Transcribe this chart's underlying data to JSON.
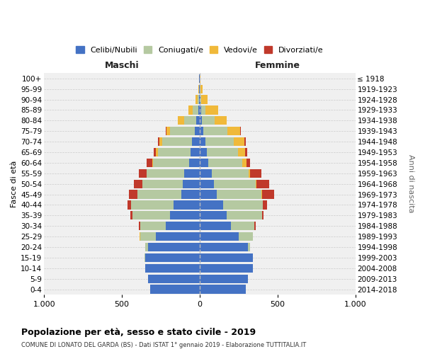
{
  "age_groups": [
    "100+",
    "95-99",
    "90-94",
    "85-89",
    "80-84",
    "75-79",
    "70-74",
    "65-69",
    "60-64",
    "55-59",
    "50-54",
    "45-49",
    "40-44",
    "35-39",
    "30-34",
    "25-29",
    "20-24",
    "15-19",
    "10-14",
    "5-9",
    "0-4"
  ],
  "birth_years": [
    "≤ 1918",
    "1919-1923",
    "1924-1928",
    "1929-1933",
    "1934-1938",
    "1939-1943",
    "1944-1948",
    "1949-1953",
    "1954-1958",
    "1959-1963",
    "1964-1968",
    "1969-1973",
    "1974-1978",
    "1979-1983",
    "1984-1988",
    "1989-1993",
    "1994-1998",
    "1999-2003",
    "2004-2008",
    "2009-2013",
    "2014-2018"
  ],
  "colors": {
    "celibi": "#4472c4",
    "coniugati": "#b5c9a1",
    "vedovi": "#f0b93a",
    "divorziati": "#c0392b"
  },
  "males": {
    "celibi": [
      2,
      3,
      5,
      8,
      20,
      30,
      50,
      60,
      70,
      100,
      110,
      120,
      170,
      190,
      220,
      280,
      330,
      350,
      350,
      330,
      320
    ],
    "coniugati": [
      0,
      2,
      8,
      35,
      80,
      160,
      190,
      210,
      230,
      240,
      260,
      280,
      270,
      240,
      160,
      100,
      20,
      5,
      0,
      0,
      0
    ],
    "vedovi": [
      0,
      3,
      15,
      30,
      40,
      25,
      20,
      10,
      5,
      3,
      0,
      0,
      0,
      0,
      0,
      5,
      0,
      0,
      0,
      0,
      0
    ],
    "divorziati": [
      0,
      0,
      0,
      0,
      0,
      5,
      10,
      15,
      35,
      50,
      55,
      55,
      25,
      15,
      10,
      3,
      0,
      0,
      0,
      0,
      0
    ]
  },
  "females": {
    "celibi": [
      2,
      2,
      5,
      8,
      15,
      25,
      35,
      45,
      55,
      80,
      90,
      110,
      150,
      175,
      200,
      250,
      310,
      340,
      340,
      310,
      295
    ],
    "coniugati": [
      0,
      2,
      5,
      30,
      80,
      155,
      185,
      200,
      220,
      235,
      270,
      285,
      255,
      225,
      150,
      90,
      15,
      3,
      0,
      0,
      0
    ],
    "vedovi": [
      5,
      15,
      40,
      80,
      80,
      80,
      65,
      45,
      25,
      10,
      5,
      5,
      0,
      0,
      0,
      0,
      0,
      0,
      0,
      0,
      0
    ],
    "divorziati": [
      0,
      0,
      0,
      0,
      0,
      5,
      10,
      15,
      25,
      70,
      80,
      80,
      30,
      10,
      8,
      3,
      0,
      0,
      0,
      0,
      0
    ]
  },
  "xlim": 1000,
  "title": "Popolazione per età, sesso e stato civile - 2019",
  "subtitle": "COMUNE DI LONATO DEL GARDA (BS) - Dati ISTAT 1° gennaio 2019 - Elaborazione TUTTITALIA.IT",
  "ylabel_left": "Fasce di età",
  "ylabel_right": "Anni di nascita",
  "xlabel_left": "Maschi",
  "xlabel_right": "Femmine",
  "legend_labels": [
    "Celibi/Nubili",
    "Coniugati/e",
    "Vedovi/e",
    "Divorziati/e"
  ],
  "background_color": "#ffffff",
  "plot_bg_color": "#f0f0f0",
  "grid_color": "#cccccc"
}
